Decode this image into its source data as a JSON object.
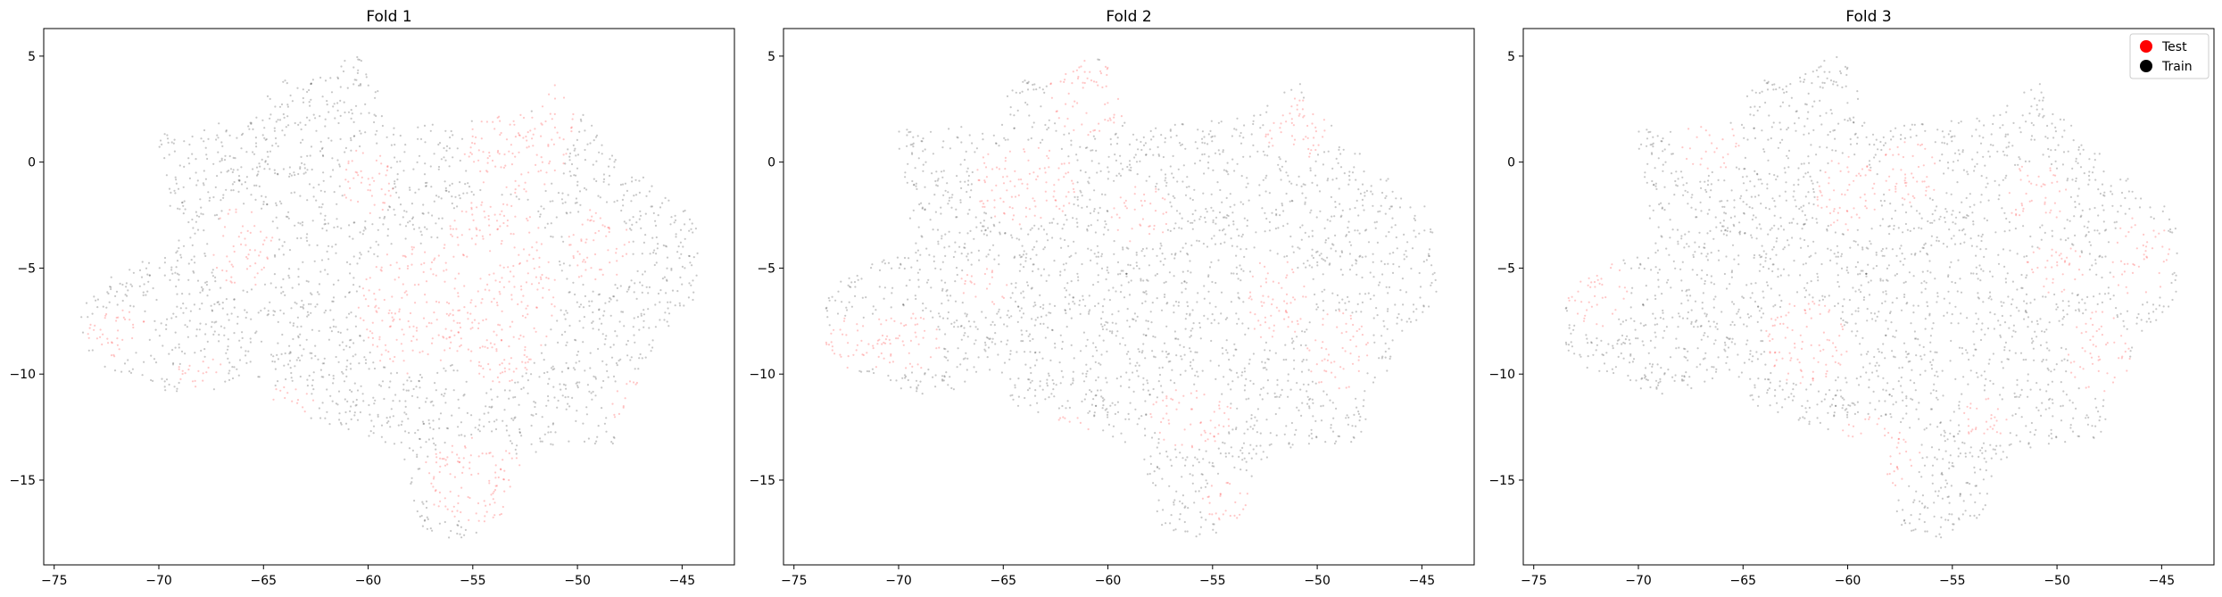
{
  "chart_data": [
    {
      "type": "scatter",
      "title": "Fold 1",
      "xlabel": "",
      "ylabel": "",
      "xlim": [
        -75.5,
        -42.5
      ],
      "ylim": [
        -19,
        6.3
      ],
      "xticks": [
        -75,
        -70,
        -65,
        -60,
        -55,
        -50,
        -45
      ],
      "yticks": [
        5,
        0,
        -5,
        -10,
        -15
      ],
      "grid": false,
      "legend": null,
      "test_regions": [
        {
          "cx": -72.0,
          "cy": -8.0,
          "rx": 1.5,
          "ry": 1.2
        },
        {
          "cx": -68.0,
          "cy": -10.0,
          "rx": 1.2,
          "ry": 0.8
        },
        {
          "cx": -66.0,
          "cy": -4.0,
          "rx": 1.5,
          "ry": 2.0
        },
        {
          "cx": -60.0,
          "cy": -1.0,
          "rx": 1.2,
          "ry": 1.8
        },
        {
          "cx": -58.0,
          "cy": -7.0,
          "rx": 2.5,
          "ry": 3.0
        },
        {
          "cx": -54.0,
          "cy": -6.0,
          "rx": 3.0,
          "ry": 4.5
        },
        {
          "cx": -53.0,
          "cy": 0.5,
          "rx": 2.5,
          "ry": 2.0
        },
        {
          "cx": -51.0,
          "cy": 2.5,
          "rx": 1.0,
          "ry": 1.5
        },
        {
          "cx": -55.0,
          "cy": -15.0,
          "rx": 2.5,
          "ry": 2.0
        },
        {
          "cx": -47.0,
          "cy": -11.5,
          "rx": 1.5,
          "ry": 1.5
        },
        {
          "cx": -64.0,
          "cy": -11.5,
          "rx": 1.5,
          "ry": 1.0
        },
        {
          "cx": -49.0,
          "cy": -4.0,
          "rx": 1.5,
          "ry": 2.0
        }
      ]
    },
    {
      "type": "scatter",
      "title": "Fold 2",
      "xlabel": "",
      "ylabel": "",
      "xlim": [
        -75.5,
        -42.5
      ],
      "ylim": [
        -19,
        6.3
      ],
      "xticks": [
        -75,
        -70,
        -65,
        -60,
        -55,
        -50,
        -45
      ],
      "yticks": [
        5,
        0,
        -5,
        -10,
        -15
      ],
      "grid": false,
      "legend": null,
      "test_regions": [
        {
          "cx": -61.0,
          "cy": 3.0,
          "rx": 2.0,
          "ry": 1.8
        },
        {
          "cx": -64.0,
          "cy": -1.0,
          "rx": 2.5,
          "ry": 2.0
        },
        {
          "cx": -70.0,
          "cy": -8.5,
          "rx": 2.0,
          "ry": 1.5
        },
        {
          "cx": -72.5,
          "cy": -8.5,
          "rx": 1.0,
          "ry": 1.2
        },
        {
          "cx": -51.0,
          "cy": 1.5,
          "rx": 1.5,
          "ry": 1.5
        },
        {
          "cx": -52.0,
          "cy": -6.5,
          "rx": 1.5,
          "ry": 2.0
        },
        {
          "cx": -49.0,
          "cy": -9.0,
          "rx": 1.5,
          "ry": 2.0
        },
        {
          "cx": -56.0,
          "cy": -12.0,
          "rx": 2.0,
          "ry": 1.5
        },
        {
          "cx": -54.0,
          "cy": -16.0,
          "rx": 1.5,
          "ry": 1.2
        },
        {
          "cx": -62.0,
          "cy": -13.0,
          "rx": 1.5,
          "ry": 1.2
        },
        {
          "cx": -58.5,
          "cy": -2.5,
          "rx": 1.5,
          "ry": 1.5
        },
        {
          "cx": -66.0,
          "cy": -6.0,
          "rx": 1.2,
          "ry": 1.0
        }
      ]
    },
    {
      "type": "scatter",
      "title": "Fold 3",
      "xlabel": "",
      "ylabel": "",
      "xlim": [
        -75.5,
        -42.5
      ],
      "ylim": [
        -19,
        6.3
      ],
      "xticks": [
        -75,
        -70,
        -65,
        -60,
        -55,
        -50,
        -45
      ],
      "yticks": [
        5,
        0,
        -5,
        -10,
        -15
      ],
      "grid": false,
      "legend": {
        "placement": "top-right",
        "entries": [
          {
            "label": "Test",
            "color": "#ff0000"
          },
          {
            "label": "Train",
            "color": "#000000"
          }
        ]
      },
      "test_regions": [
        {
          "cx": -66.5,
          "cy": 0.8,
          "rx": 1.5,
          "ry": 1.2
        },
        {
          "cx": -72.0,
          "cy": -6.0,
          "rx": 1.5,
          "ry": 1.8
        },
        {
          "cx": -60.0,
          "cy": -1.5,
          "rx": 1.5,
          "ry": 1.8
        },
        {
          "cx": -57.0,
          "cy": -0.5,
          "rx": 1.5,
          "ry": 1.5
        },
        {
          "cx": -51.0,
          "cy": -1.5,
          "rx": 1.5,
          "ry": 1.5
        },
        {
          "cx": -50.0,
          "cy": -5.0,
          "rx": 1.5,
          "ry": 1.2
        },
        {
          "cx": -46.0,
          "cy": -4.5,
          "rx": 1.5,
          "ry": 2.0
        },
        {
          "cx": -62.0,
          "cy": -8.5,
          "rx": 2.0,
          "ry": 2.0
        },
        {
          "cx": -59.0,
          "cy": -14.0,
          "rx": 2.5,
          "ry": 2.0
        },
        {
          "cx": -48.0,
          "cy": -9.0,
          "rx": 1.5,
          "ry": 2.0
        },
        {
          "cx": -66.0,
          "cy": -11.0,
          "rx": 1.0,
          "ry": 0.8
        },
        {
          "cx": -53.5,
          "cy": -12.0,
          "rx": 1.2,
          "ry": 1.2
        }
      ]
    }
  ],
  "colors": {
    "test": "#ff0000",
    "train": "#000000"
  }
}
